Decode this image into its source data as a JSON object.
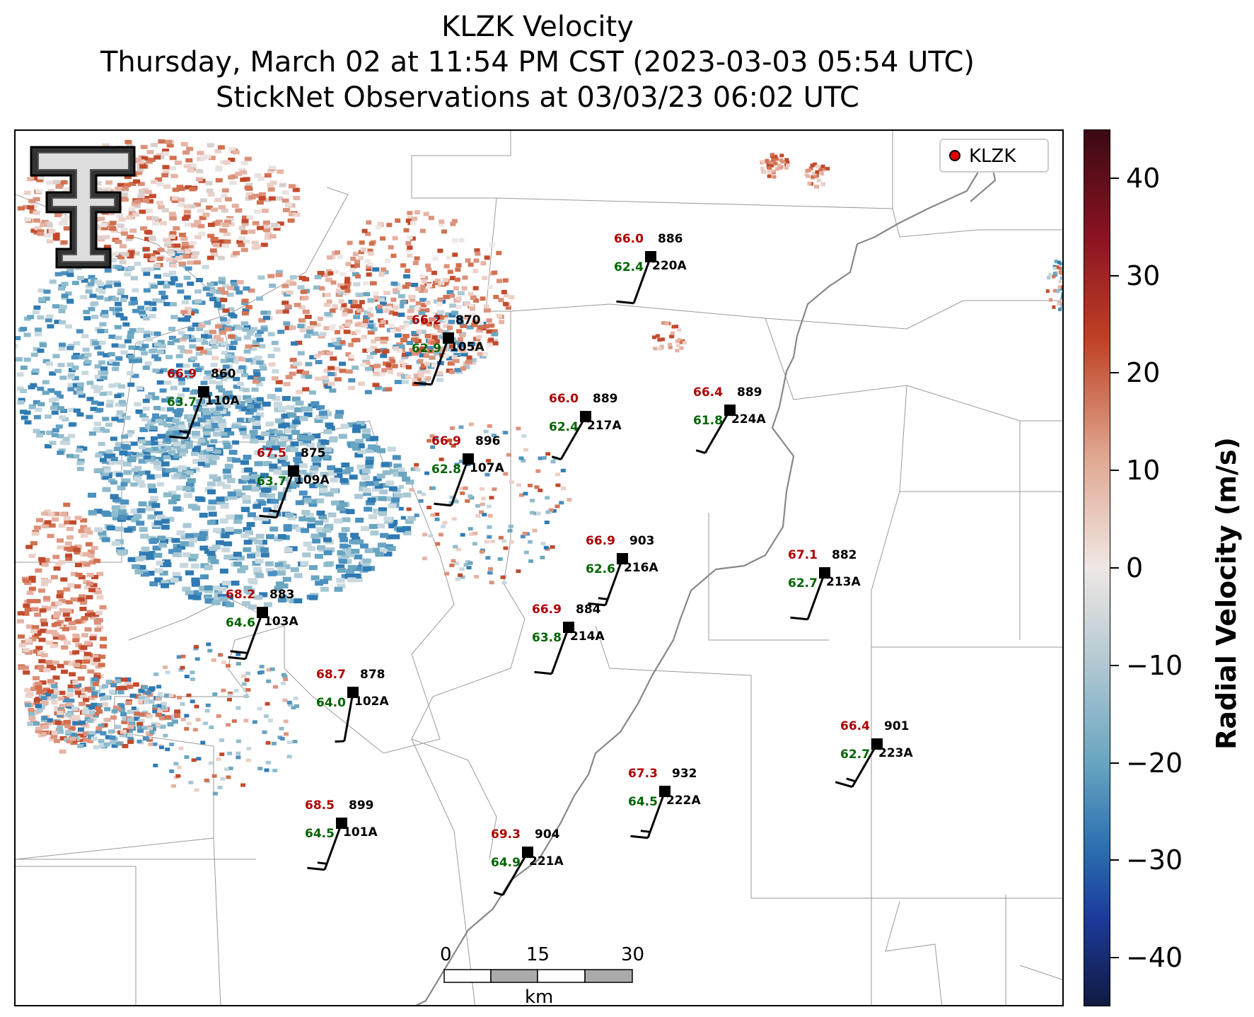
{
  "title": {
    "line1": "KLZK Velocity",
    "line2": "Thursday, March 02 at 11:54 PM CST (2023-03-03 05:54 UTC)",
    "line3": "StickNet Observations at 03/03/23 06:02 UTC"
  },
  "legend": {
    "label": "KLZK",
    "marker_color": "#e00000"
  },
  "colorbar": {
    "label": "Radial Velocity (m/s)",
    "ticks": [
      "40",
      "30",
      "20",
      "10",
      "0",
      "−10",
      "−20",
      "−30",
      "−40"
    ],
    "range": [
      -45,
      45
    ],
    "colors": [
      "#3a0a13",
      "#8a1222",
      "#bf4225",
      "#e0a58e",
      "#efe7e4",
      "#b7cbd3",
      "#6aa6c1",
      "#2a6fb0",
      "#1c3a9c",
      "#101a40"
    ]
  },
  "scalebar": {
    "ticks": [
      "0",
      "15",
      "30"
    ],
    "unit": "km"
  },
  "logo": {
    "icon": "texas-tech-double-t-logo"
  },
  "stations": [
    {
      "id": "220A",
      "temp": "66.0",
      "dew": "62.4",
      "pres": "886",
      "dir": 200,
      "spd": 10
    },
    {
      "id": "105A",
      "temp": "66.2",
      "dew": "62.9",
      "pres": "870",
      "dir": 200,
      "spd": 10
    },
    {
      "id": "110A",
      "temp": "66.9",
      "dew": "63.7",
      "pres": "860",
      "dir": 200,
      "spd": 15
    },
    {
      "id": "217A",
      "temp": "66.0",
      "dew": "62.4",
      "pres": "889",
      "dir": 210,
      "spd": 5
    },
    {
      "id": "224A",
      "temp": "66.4",
      "dew": "61.8",
      "pres": "889",
      "dir": 210,
      "spd": 5
    },
    {
      "id": "107A",
      "temp": "66.9",
      "dew": "62.8",
      "pres": "896",
      "dir": 200,
      "spd": 10
    },
    {
      "id": "109A",
      "temp": "67.5",
      "dew": "63.7",
      "pres": "875",
      "dir": 200,
      "spd": 15
    },
    {
      "id": "216A",
      "temp": "66.9",
      "dew": "62.6",
      "pres": "903",
      "dir": 200,
      "spd": 15
    },
    {
      "id": "213A",
      "temp": "67.1",
      "dew": "62.7",
      "pres": "882",
      "dir": 200,
      "spd": 10
    },
    {
      "id": "103A",
      "temp": "68.2",
      "dew": "64.6",
      "pres": "883",
      "dir": 200,
      "spd": 20
    },
    {
      "id": "214A",
      "temp": "66.9",
      "dew": "63.8",
      "pres": "884",
      "dir": 200,
      "spd": 10
    },
    {
      "id": "102A",
      "temp": "68.7",
      "dew": "64.0",
      "pres": "878",
      "dir": 190,
      "spd": 5
    },
    {
      "id": "223A",
      "temp": "66.4",
      "dew": "62.7",
      "pres": "901",
      "dir": 210,
      "spd": 15
    },
    {
      "id": "222A",
      "temp": "67.3",
      "dew": "64.5",
      "pres": "932",
      "dir": 200,
      "spd": 15
    },
    {
      "id": "101A",
      "temp": "68.5",
      "dew": "64.5",
      "pres": "899",
      "dir": 200,
      "spd": 15
    },
    {
      "id": "221A",
      "temp": "69.3",
      "dew": "64.9",
      "pres": "904",
      "dir": 210,
      "spd": 5
    }
  ]
}
